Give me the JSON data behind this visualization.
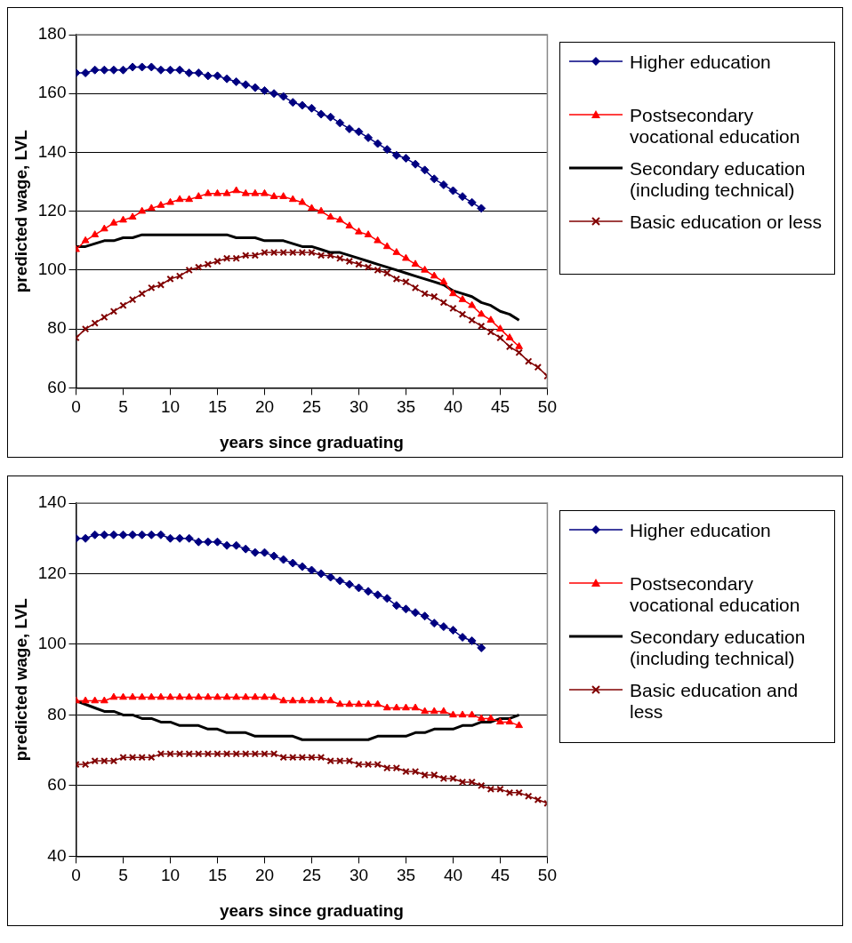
{
  "chart_data": [
    {
      "type": "line",
      "xlabel": "years since graduating",
      "ylabel": "predicted wage, LVL",
      "xlim": [
        0,
        50
      ],
      "xticks": [
        0,
        5,
        10,
        15,
        20,
        25,
        30,
        35,
        40,
        45,
        50
      ],
      "ylim": [
        60,
        180
      ],
      "yticks": [
        60,
        80,
        100,
        120,
        140,
        160,
        180
      ],
      "grid": "y",
      "legend": "right",
      "line_style": "solid",
      "x": [
        0,
        1,
        2,
        3,
        4,
        5,
        6,
        7,
        8,
        9,
        10,
        11,
        12,
        13,
        14,
        15,
        16,
        17,
        18,
        19,
        20,
        21,
        22,
        23,
        24,
        25,
        26,
        27,
        28,
        29,
        30,
        31,
        32,
        33,
        34,
        35,
        36,
        37,
        38,
        39,
        40,
        41,
        42,
        43,
        44,
        45,
        46,
        47,
        48,
        49,
        50
      ],
      "series": [
        {
          "name": "Higher education",
          "color": "#000080",
          "marker": "diamond",
          "values": [
            167,
            167,
            168,
            168,
            168,
            168,
            169,
            169,
            169,
            168,
            168,
            168,
            167,
            167,
            166,
            166,
            165,
            164,
            163,
            162,
            161,
            160,
            159,
            157,
            156,
            155,
            153,
            152,
            150,
            148,
            147,
            145,
            143,
            141,
            139,
            138,
            136,
            134,
            131,
            129,
            127,
            125,
            123,
            121,
            null,
            null,
            null,
            null,
            null,
            null,
            null
          ]
        },
        {
          "name": "Postsecondary vocational education",
          "color": "#ff0000",
          "marker": "triangle",
          "values": [
            107,
            110,
            112,
            114,
            116,
            117,
            118,
            120,
            121,
            122,
            123,
            124,
            124,
            125,
            126,
            126,
            126,
            127,
            126,
            126,
            126,
            125,
            125,
            124,
            123,
            121,
            120,
            118,
            117,
            115,
            113,
            112,
            110,
            108,
            106,
            104,
            102,
            100,
            98,
            96,
            92,
            90,
            88,
            85,
            83,
            80,
            77,
            74,
            null,
            null,
            null
          ]
        },
        {
          "name": "Secondary education (including technical)",
          "color": "#000000",
          "marker": "none",
          "values": [
            108,
            108,
            109,
            110,
            110,
            111,
            111,
            112,
            112,
            112,
            112,
            112,
            112,
            112,
            112,
            112,
            112,
            111,
            111,
            111,
            110,
            110,
            110,
            109,
            108,
            108,
            107,
            106,
            106,
            105,
            104,
            103,
            102,
            101,
            100,
            99,
            98,
            97,
            96,
            95,
            93,
            92,
            91,
            89,
            88,
            86,
            85,
            83,
            null,
            null,
            null
          ]
        },
        {
          "name": "Basic education or less",
          "color": "#800000",
          "marker": "cross",
          "values": [
            77,
            80,
            82,
            84,
            86,
            88,
            90,
            92,
            94,
            95,
            97,
            98,
            100,
            101,
            102,
            103,
            104,
            104,
            105,
            105,
            106,
            106,
            106,
            106,
            106,
            106,
            105,
            105,
            104,
            103,
            102,
            101,
            100,
            99,
            97,
            96,
            94,
            92,
            91,
            89,
            87,
            85,
            83,
            81,
            79,
            77,
            74,
            72,
            69,
            67,
            64
          ]
        }
      ]
    },
    {
      "type": "line",
      "xlabel": "years since graduating",
      "ylabel": "predicted wage, LVL",
      "xlim": [
        0,
        50
      ],
      "xticks": [
        0,
        5,
        10,
        15,
        20,
        25,
        30,
        35,
        40,
        45,
        50
      ],
      "ylim": [
        40,
        140
      ],
      "yticks": [
        40,
        60,
        80,
        100,
        120,
        140
      ],
      "grid": "y",
      "legend": "right",
      "line_style": "solid",
      "x": [
        0,
        1,
        2,
        3,
        4,
        5,
        6,
        7,
        8,
        9,
        10,
        11,
        12,
        13,
        14,
        15,
        16,
        17,
        18,
        19,
        20,
        21,
        22,
        23,
        24,
        25,
        26,
        27,
        28,
        29,
        30,
        31,
        32,
        33,
        34,
        35,
        36,
        37,
        38,
        39,
        40,
        41,
        42,
        43,
        44,
        45,
        46,
        47,
        48,
        49,
        50
      ],
      "series": [
        {
          "name": "Higher education",
          "color": "#000080",
          "marker": "diamond",
          "values": [
            130,
            130,
            131,
            131,
            131,
            131,
            131,
            131,
            131,
            131,
            130,
            130,
            130,
            129,
            129,
            129,
            128,
            128,
            127,
            126,
            126,
            125,
            124,
            123,
            122,
            121,
            120,
            119,
            118,
            117,
            116,
            115,
            114,
            113,
            111,
            110,
            109,
            108,
            106,
            105,
            104,
            102,
            101,
            99,
            null,
            null,
            null,
            null,
            null,
            null,
            null
          ]
        },
        {
          "name": "Postsecondary vocational education",
          "color": "#ff0000",
          "marker": "triangle",
          "values": [
            84,
            84,
            84,
            84,
            85,
            85,
            85,
            85,
            85,
            85,
            85,
            85,
            85,
            85,
            85,
            85,
            85,
            85,
            85,
            85,
            85,
            85,
            84,
            84,
            84,
            84,
            84,
            84,
            83,
            83,
            83,
            83,
            83,
            82,
            82,
            82,
            82,
            81,
            81,
            81,
            80,
            80,
            80,
            79,
            79,
            78,
            78,
            77,
            null,
            null,
            null
          ]
        },
        {
          "name": "Secondary education (including technical)",
          "color": "#000000",
          "marker": "none",
          "values": [
            84,
            83,
            82,
            81,
            81,
            80,
            80,
            79,
            79,
            78,
            78,
            77,
            77,
            77,
            76,
            76,
            75,
            75,
            75,
            74,
            74,
            74,
            74,
            74,
            73,
            73,
            73,
            73,
            73,
            73,
            73,
            73,
            74,
            74,
            74,
            74,
            75,
            75,
            76,
            76,
            76,
            77,
            77,
            78,
            78,
            79,
            79,
            80,
            null,
            null,
            null
          ]
        },
        {
          "name": "Basic education and less",
          "color": "#800000",
          "marker": "cross",
          "values": [
            66,
            66,
            67,
            67,
            67,
            68,
            68,
            68,
            68,
            69,
            69,
            69,
            69,
            69,
            69,
            69,
            69,
            69,
            69,
            69,
            69,
            69,
            68,
            68,
            68,
            68,
            68,
            67,
            67,
            67,
            66,
            66,
            66,
            65,
            65,
            64,
            64,
            63,
            63,
            62,
            62,
            61,
            61,
            60,
            59,
            59,
            58,
            58,
            57,
            56,
            55
          ]
        }
      ]
    }
  ]
}
